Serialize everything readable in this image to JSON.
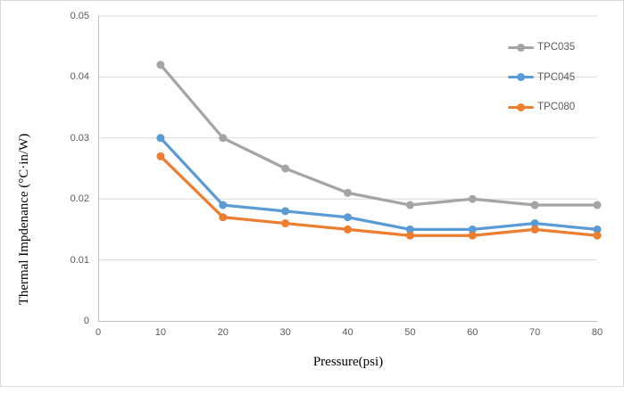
{
  "chart_data": {
    "type": "line",
    "x": [
      10,
      20,
      30,
      40,
      50,
      60,
      70,
      80
    ],
    "series": [
      {
        "name": "TPC035",
        "color": "#a5a5a5",
        "values": [
          0.042,
          0.03,
          0.025,
          0.021,
          0.019,
          0.02,
          0.019,
          0.019
        ]
      },
      {
        "name": "TPC045",
        "color": "#5b9bd5",
        "values": [
          0.03,
          0.019,
          0.018,
          0.017,
          0.015,
          0.015,
          0.016,
          0.015
        ]
      },
      {
        "name": "TPC080",
        "color": "#ed7d31",
        "values": [
          0.027,
          0.017,
          0.016,
          0.015,
          0.014,
          0.014,
          0.015,
          0.014
        ]
      }
    ],
    "xlabel": "Pressure(psi)",
    "ylabel": "Thermal Impdenance (°C·in/W)",
    "xlim": [
      0,
      80
    ],
    "ylim": [
      0,
      0.05
    ],
    "x_tick_labels": [
      "0",
      "10",
      "20",
      "30",
      "40",
      "50",
      "60",
      "70",
      "80"
    ],
    "y_tick_labels": [
      "0",
      "0.01",
      "0.02",
      "0.03",
      "0.04",
      "0.05"
    ],
    "grid": "horizontal-only",
    "legend_position": "top-right",
    "marker": "circle",
    "colors": {
      "grid": "#d9d9d9",
      "axis": "#bfbfbf",
      "tick_text": "#595959",
      "title_text": "#000000",
      "frame_border": "#d9d9d9",
      "background": "#ffffff"
    }
  }
}
